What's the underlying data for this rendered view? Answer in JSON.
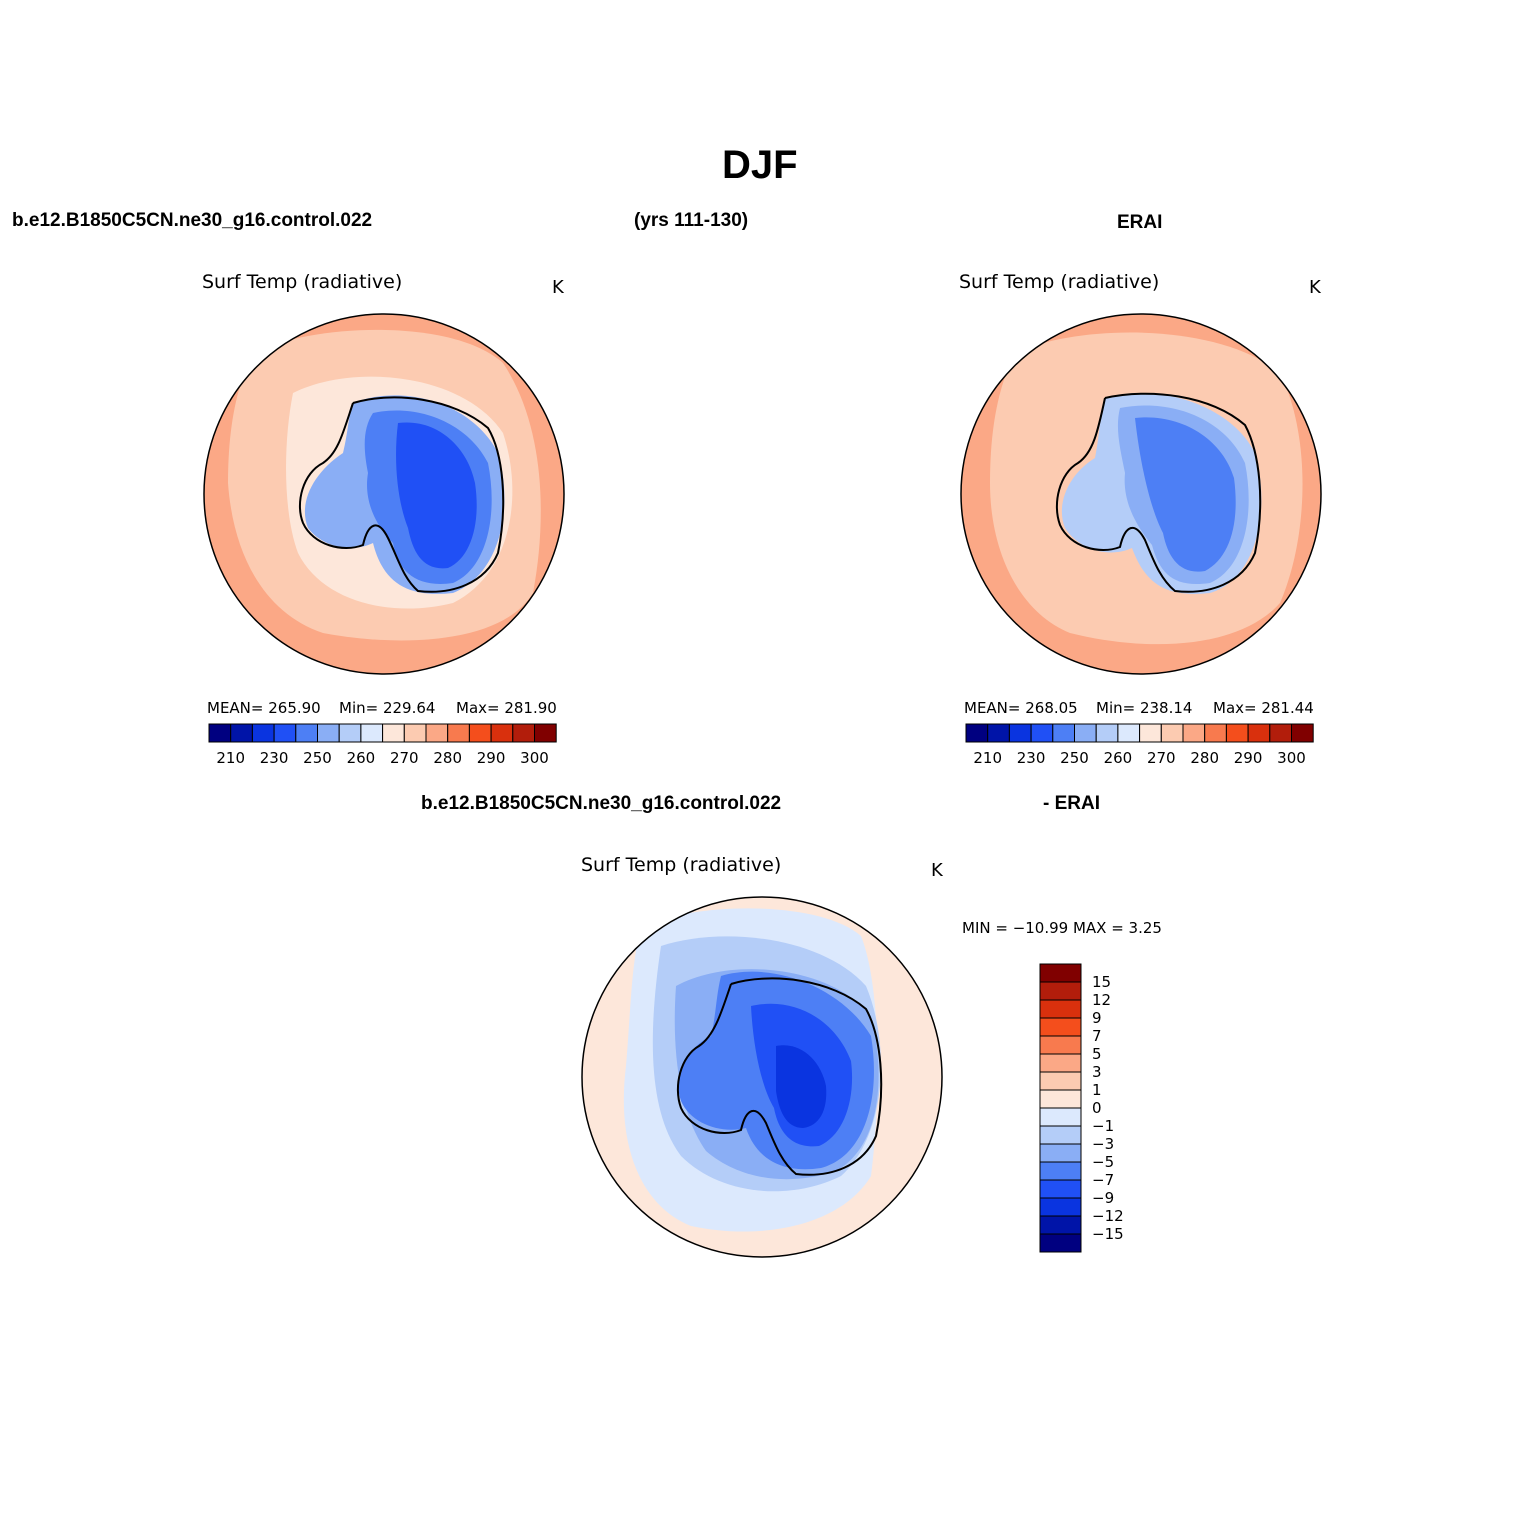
{
  "figure": {
    "title": "DJF",
    "case_label": "b.e12.B1850C5CN.ne30_g16.control.022",
    "years_label": "(yrs 111-130)",
    "ref_label": "ERAI",
    "diff_case_label": "b.e12.B1850C5CN.ne30_g16.control.022",
    "diff_ref_label": "- ERAI"
  },
  "colors": {
    "land_outline": "#000000",
    "model_scale": [
      "#000080",
      "#0014a8",
      "#0a34e0",
      "#2050f5",
      "#4d7ff5",
      "#8aaef5",
      "#b4cdf8",
      "#dce9fd",
      "#fde7da",
      "#fccbb1",
      "#fba886",
      "#f87a4e",
      "#f44e1c",
      "#d9300d",
      "#b21d0b",
      "#800000"
    ],
    "diff_scale": [
      "#000080",
      "#0014a8",
      "#0a34e0",
      "#2050f5",
      "#4d7ff5",
      "#8aaef5",
      "#b4cdf8",
      "#dce9fd",
      "#fde7da",
      "#fccbb1",
      "#fba886",
      "#f87a4e",
      "#f44e1c",
      "#d9300d",
      "#b21d0b",
      "#800000"
    ]
  },
  "panels": [
    {
      "id": "model",
      "variable": "Surf Temp (radiative)",
      "units": "K",
      "mean": "MEAN= 265.90",
      "min": "Min= 229.64",
      "max": "Max= 281.90",
      "colorbar_ticks": [
        "210",
        "230",
        "250",
        "260",
        "270",
        "280",
        "290",
        "300"
      ]
    },
    {
      "id": "obs",
      "variable": "Surf Temp (radiative)",
      "units": "K",
      "mean": "MEAN= 268.05",
      "min": "Min= 238.14",
      "max": "Max= 281.44",
      "colorbar_ticks": [
        "210",
        "230",
        "250",
        "260",
        "270",
        "280",
        "290",
        "300"
      ]
    },
    {
      "id": "diff",
      "variable": "Surf Temp (radiative)",
      "units": "K",
      "minmax": "MIN = −10.99 MAX =    3.25",
      "colorbar_ticks": [
        "15",
        "12",
        "9",
        "7",
        "5",
        "3",
        "1",
        "0",
        "−1",
        "−3",
        "−5",
        "−7",
        "−9",
        "−12",
        "−15"
      ]
    }
  ]
}
